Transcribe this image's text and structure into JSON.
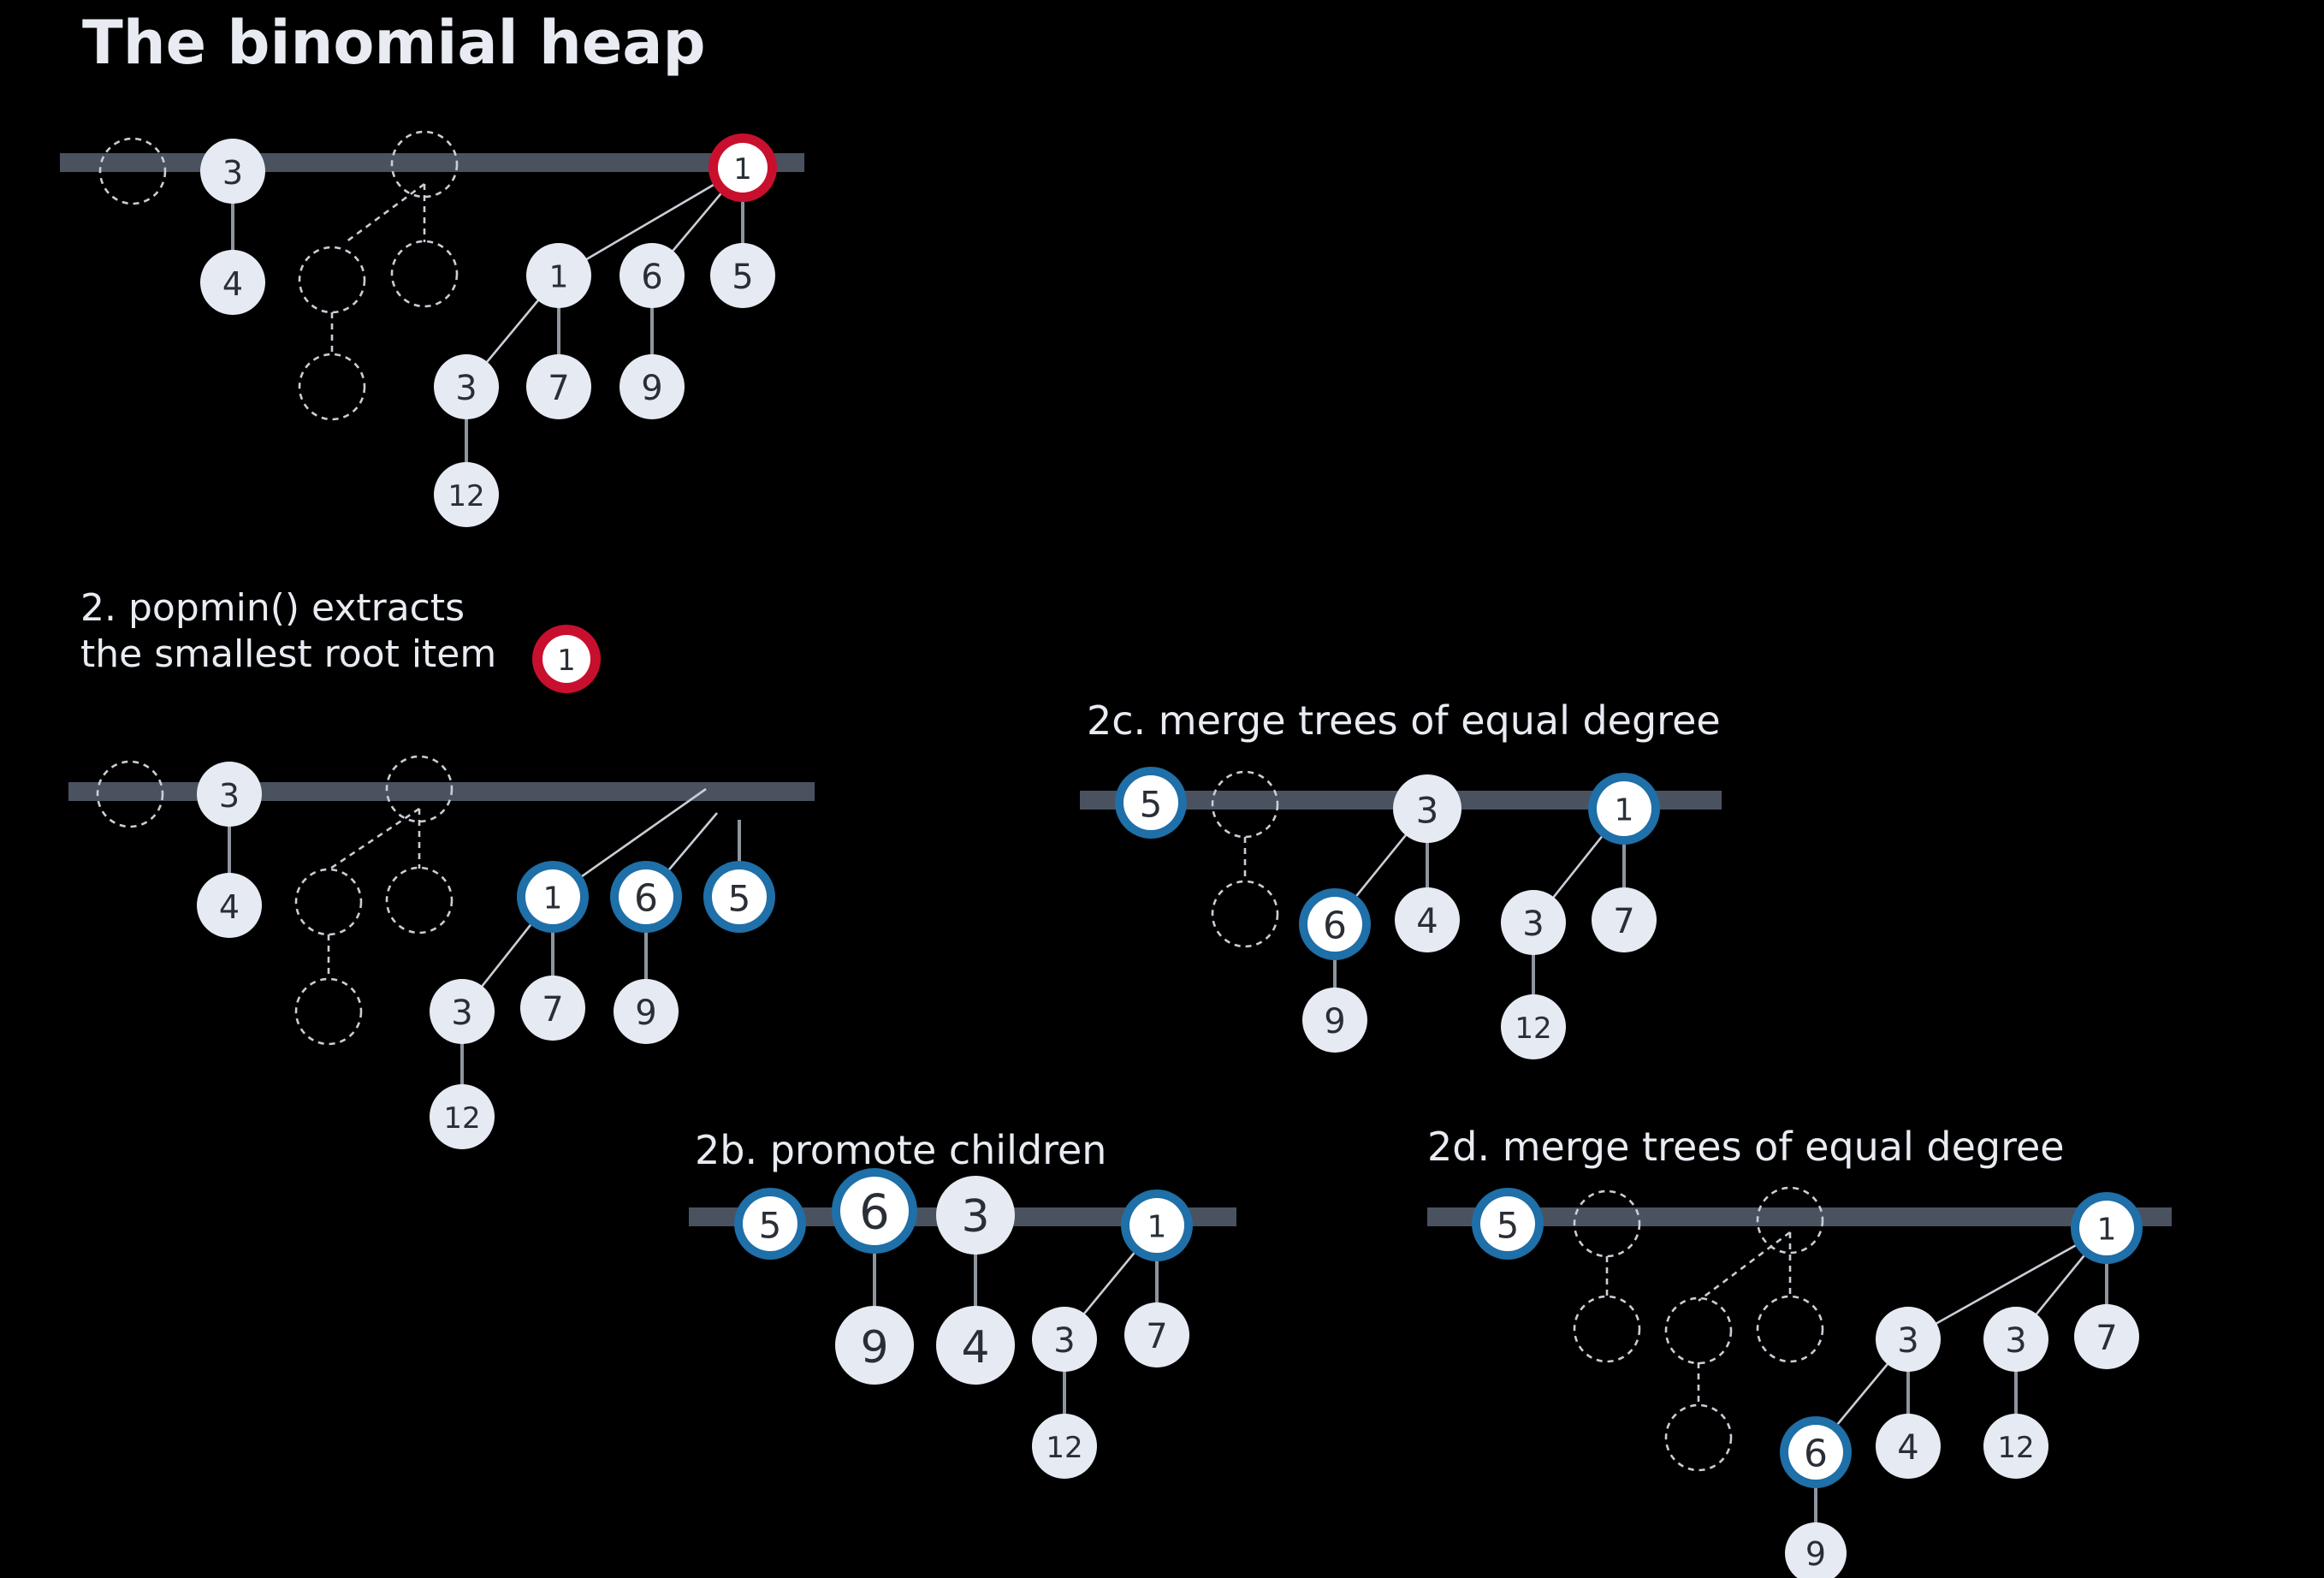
{
  "title": "The binomial heap",
  "colors": {
    "background": "#000000",
    "root_bar": "#4a5260",
    "node_fill": "#e6eaf2",
    "node_text": "#2a2f36",
    "highlight_min": "#c8102e",
    "highlight_moved": "#1f6fa8"
  },
  "step2": {
    "line1": "2. popmin() extracts",
    "line2": "the smallest root item",
    "badge": "1"
  },
  "step2b": {
    "caption": "2b. promote children"
  },
  "step2c": {
    "caption": "2c. merge trees of equal degree"
  },
  "step2d": {
    "caption": "2d. merge trees of equal degree"
  },
  "nodes": {
    "top": {
      "r3": "3",
      "c4": "4",
      "r1": "1",
      "c1": "1",
      "c6": "6",
      "c5": "5",
      "g3": "3",
      "g7": "7",
      "g9": "9",
      "gg12": "12"
    },
    "mid": {
      "r3": "3",
      "c4": "4",
      "c1": "1",
      "c6": "6",
      "c5": "5",
      "g3": "3",
      "g7": "7",
      "g9": "9",
      "gg12": "12"
    },
    "s2b": {
      "r5": "5",
      "r6": "6",
      "r3": "3",
      "r1": "1",
      "c9": "9",
      "c4": "4",
      "c3": "3",
      "c7": "7",
      "g12": "12"
    },
    "s2c": {
      "r5": "5",
      "r3": "3",
      "r1": "1",
      "c6": "6",
      "c4": "4",
      "c3": "3",
      "c7": "7",
      "g9": "9",
      "g12": "12"
    },
    "s2d": {
      "r5": "5",
      "r1": "1",
      "c3a": "3",
      "c3b": "3",
      "c7": "7",
      "g6": "6",
      "g4": "4",
      "g12": "12",
      "gg9": "9"
    }
  }
}
